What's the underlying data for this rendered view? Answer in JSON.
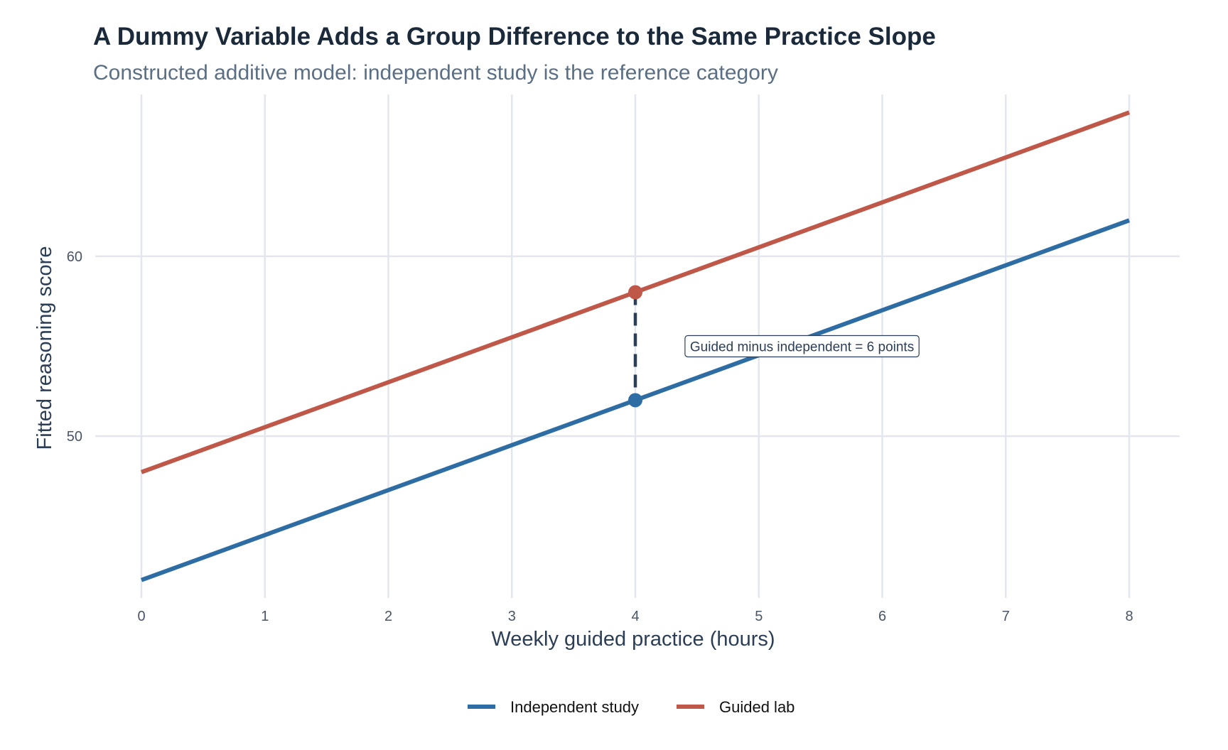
{
  "chart_data": {
    "type": "line",
    "title": "A Dummy Variable Adds a Group Difference to the Same Practice Slope",
    "subtitle": "Constructed additive model: independent study is the reference category",
    "xlabel": "Weekly guided practice (hours)",
    "ylabel": "Fitted reasoning score",
    "xlim": [
      0,
      8
    ],
    "ylim": [
      41,
      69
    ],
    "x_ticks": [
      0,
      1,
      2,
      3,
      4,
      5,
      6,
      7,
      8
    ],
    "y_ticks": [
      50,
      60
    ],
    "grid": true,
    "legend_position": "bottom",
    "series": [
      {
        "name": "Independent study",
        "color": "#2e6da4",
        "x": [
          0,
          8
        ],
        "y": [
          42,
          62
        ]
      },
      {
        "name": "Guided lab",
        "color": "#c0584a",
        "x": [
          0,
          8
        ],
        "y": [
          48,
          68
        ]
      }
    ],
    "highlight": {
      "x": 4,
      "y_from": 52,
      "y_to": 58,
      "segment_color": "#2c3e55",
      "label": "Guided minus independent = 6 points",
      "label_x": 5.35,
      "label_y": 55
    }
  }
}
